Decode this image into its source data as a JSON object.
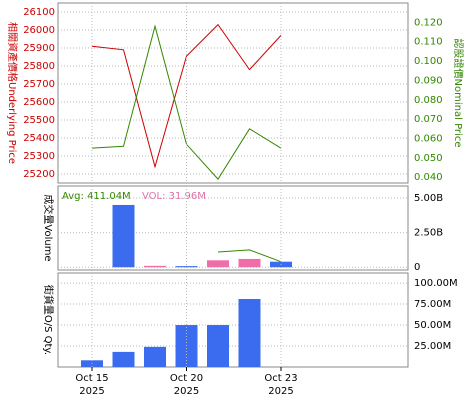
{
  "chart_data": [
    {
      "type": "line",
      "ylabel": "相關資產價格Underlying Price",
      "y2label": "認股證價Nominal Price",
      "ylim": [
        25150,
        26150
      ],
      "yticks": [
        25200,
        25300,
        25400,
        25500,
        25600,
        25700,
        25800,
        25900,
        26000,
        26100
      ],
      "y2lim": [
        0.037,
        0.13
      ],
      "y2ticks": [
        {
          "value": 0.04,
          "label": "0.040"
        },
        {
          "value": 0.05,
          "label": "0.050"
        },
        {
          "value": 0.06,
          "label": "0.060"
        },
        {
          "value": 0.07,
          "label": "0.070"
        },
        {
          "value": 0.08,
          "label": "0.080"
        },
        {
          "value": 0.09,
          "label": "0.090"
        },
        {
          "value": 0.1,
          "label": "0.100"
        },
        {
          "value": 0.11,
          "label": "0.110"
        },
        {
          "value": 0.12,
          "label": "0.120"
        }
      ],
      "ycolor": "#cc0000",
      "y2color": "#338800",
      "grid": true,
      "series": [
        {
          "color": "#cc0000",
          "values": [
            25910,
            25890,
            25240,
            25855,
            26030,
            25780,
            25970
          ]
        },
        {
          "color": "#338800",
          "axis": "y2",
          "values": [
            0.055,
            0.056,
            0.118,
            0.057,
            0.039,
            0.065,
            0.055
          ]
        }
      ]
    },
    {
      "type": "bar",
      "ylabel": "成交量Volume",
      "annotations": [
        {
          "text": "Avg: 411.04M",
          "color": "#338800"
        },
        {
          "text": "VOL: 31.96M",
          "color": "#e070a8"
        }
      ],
      "ylim": [
        -200000000,
        5870000000
      ],
      "yticks": [
        0,
        {
          "value": 2500000000,
          "label": "2.50B"
        },
        {
          "value": 5000000000,
          "label": "5.00B"
        }
      ],
      "grid": true,
      "values": [
        null,
        4500000000,
        100000000,
        80000000,
        500000000,
        600000000,
        400000000
      ],
      "colors": [
        null,
        "#3b6cf0",
        "#f06ea8",
        "#3b6cf0",
        "#f06ea8",
        "#f06ea8",
        "#3b6cf0"
      ],
      "line": {
        "color": "#338800",
        "values": [
          null,
          null,
          null,
          null,
          1100000000,
          1250000000,
          400000000
        ]
      }
    },
    {
      "type": "bar",
      "ylabel": "街貨量O/S Qty.",
      "categories": [
        "Oct 15",
        null,
        null,
        "Oct 20",
        null,
        null,
        "Oct 23"
      ],
      "category_years": [
        "2025",
        null,
        null,
        "2025",
        null,
        null,
        "2025"
      ],
      "ylim": [
        0,
        112000000
      ],
      "yticks": [
        {
          "value": 25000000,
          "label": "25.00M"
        },
        {
          "value": 50000000,
          "label": "50.00M"
        },
        {
          "value": 75000000,
          "label": "75.00M"
        },
        {
          "value": 100000000,
          "label": "100.00M"
        }
      ],
      "grid": true,
      "color": "#3b6cf0",
      "values": [
        8000000,
        18000000,
        24000000,
        50000000,
        50000000,
        81000000,
        null
      ]
    }
  ]
}
